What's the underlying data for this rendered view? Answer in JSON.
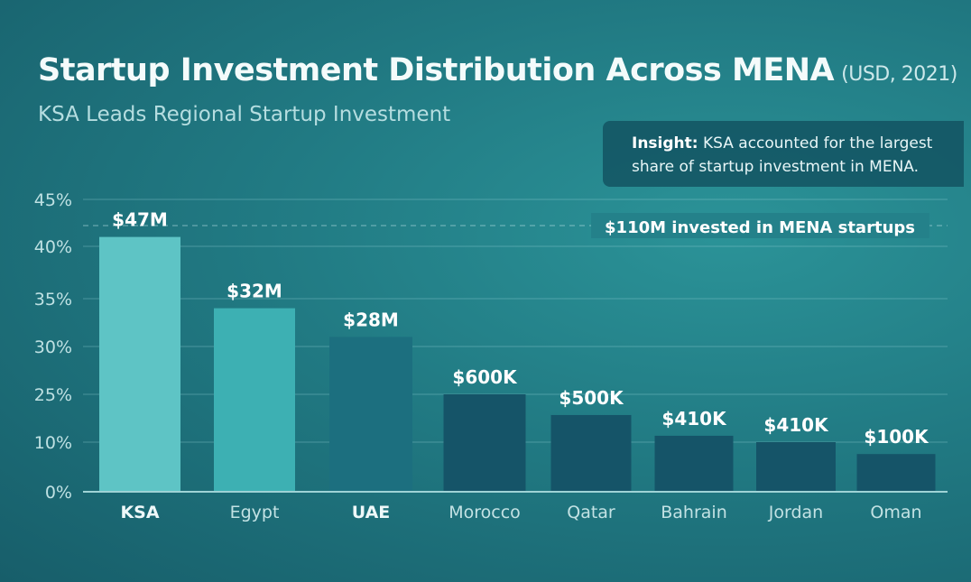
{
  "chart_data": {
    "type": "bar",
    "title": "Startup Investment Distribution Across MENA",
    "title_unit": "(USD, 2021)",
    "subtitle": "KSA Leads Regional Startup Investment",
    "insight_label": "Insight:",
    "insight_text": "KSA accounted for the largest share of startup investment in MENA.",
    "reference_line_label": "$110M invested in MENA startups",
    "y_ticks": [
      "0%",
      "10%",
      "25%",
      "30%",
      "35%",
      "40%",
      "45%"
    ],
    "y_tick_values": [
      0,
      10,
      25,
      30,
      35,
      40,
      45
    ],
    "ylim": [
      0,
      45
    ],
    "grid": true,
    "categories": [
      "KSA",
      "Egypt",
      "UAE",
      "Morocco",
      "Qatar",
      "Bahrain",
      "Jordan",
      "Oman"
    ],
    "values": [
      41,
      34,
      31,
      25,
      18.5,
      12,
      10,
      7.6
    ],
    "data_labels": [
      "$47M",
      "$32M",
      "$28M",
      "$600K",
      "$500K",
      "$410K",
      "$410K",
      "$100K"
    ],
    "bold_categories": [
      "KSA",
      "UAE"
    ],
    "colors": [
      "#5ec4c5",
      "#3db0b3",
      "#1c6f7f",
      "#155468",
      "#155468",
      "#155468",
      "#155468",
      "#155468"
    ]
  }
}
